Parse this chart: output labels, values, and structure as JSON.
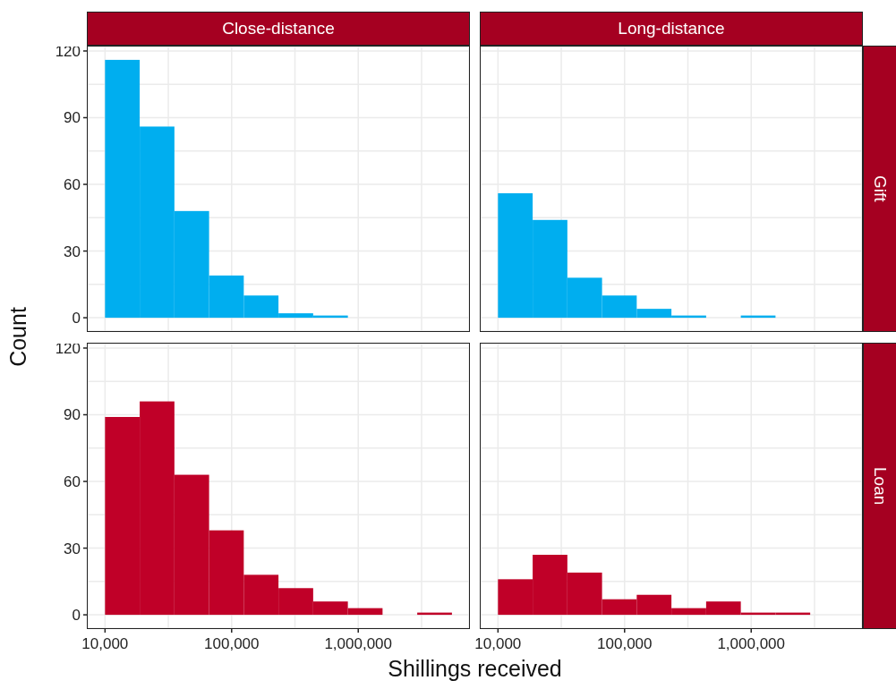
{
  "chart_data": [
    {
      "type": "histogram",
      "title": "Close-distance",
      "ylabel": "Count",
      "color": "#00aeef",
      "bins": [
        10000,
        18790,
        35320,
        66370,
        124700,
        234400,
        440600,
        827900
      ],
      "values": [
        116,
        86,
        48,
        19,
        10,
        2,
        1
      ],
      "log": "x",
      "xlim": [
        7300,
        7500000
      ],
      "ylim": [
        -6,
        122
      ],
      "xticks": [
        10000,
        {
          "value": 31620,
          "label": null
        },
        100000,
        {
          "value": 316200,
          "label": null
        },
        1000000,
        {
          "value": 3162000,
          "label": null
        }
      ],
      "yticks": [
        0,
        {
          "value": 15,
          "label": null
        },
        30,
        {
          "value": 45,
          "label": null
        },
        60,
        {
          "value": 75,
          "label": null
        },
        90,
        {
          "value": 105,
          "label": null
        },
        120
      ],
      "grid": true,
      "tick_labels": "y"
    },
    {
      "type": "histogram",
      "title": "Long-distance",
      "y2label": "Gift",
      "color": "#00aeef",
      "bins": [
        10000,
        18790,
        35320,
        66370,
        124700,
        234400,
        440600,
        827900,
        1556000
      ],
      "values": [
        56,
        44,
        18,
        10,
        4,
        1,
        0,
        1
      ],
      "log": "x",
      "xlim": [
        7300,
        7500000
      ],
      "ylim": [
        -6,
        122
      ],
      "xticks": [
        10000,
        {
          "value": 31620,
          "label": null
        },
        100000,
        {
          "value": 316200,
          "label": null
        },
        1000000,
        {
          "value": 3162000,
          "label": null
        }
      ],
      "yticks": [
        0,
        {
          "value": 15,
          "label": null
        },
        30,
        {
          "value": 45,
          "label": null
        },
        60,
        {
          "value": 75,
          "label": null
        },
        90,
        {
          "value": 105,
          "label": null
        },
        120
      ],
      "grid": true,
      "tick_labels": false
    },
    {
      "type": "histogram",
      "xlabel": "Shillings received",
      "color": "#c00028",
      "bins": [
        10000,
        18790,
        35320,
        66370,
        124700,
        234400,
        440600,
        827900,
        1556000,
        2924000,
        5495000
      ],
      "values": [
        89,
        96,
        63,
        38,
        18,
        12,
        6,
        3,
        0,
        1
      ],
      "log": "x",
      "xlim": [
        7300,
        7500000
      ],
      "ylim": [
        -6,
        122
      ],
      "xticks": [
        {
          "value": 10000,
          "label": "10,000"
        },
        {
          "value": 31620,
          "label": null
        },
        {
          "value": 100000,
          "label": "100,000"
        },
        {
          "value": 316200,
          "label": null
        },
        {
          "value": 1000000,
          "label": "1,000,000"
        },
        {
          "value": 3162000,
          "label": null
        }
      ],
      "yticks": [
        0,
        {
          "value": 15,
          "label": null
        },
        30,
        {
          "value": 45,
          "label": null
        },
        60,
        {
          "value": 75,
          "label": null
        },
        90,
        {
          "value": 105,
          "label": null
        },
        120
      ],
      "grid": true
    },
    {
      "type": "histogram",
      "y2label": "Loan",
      "color": "#c00028",
      "bins": [
        10000,
        18790,
        35320,
        66370,
        124700,
        234400,
        440600,
        827900,
        1556000,
        2924000
      ],
      "values": [
        16,
        27,
        19,
        7,
        9,
        3,
        6,
        1,
        1
      ],
      "log": "x",
      "xlim": [
        7300,
        7500000
      ],
      "ylim": [
        -6,
        122
      ],
      "xticks": [
        {
          "value": 10000,
          "label": "10,000"
        },
        {
          "value": 31620,
          "label": null
        },
        {
          "value": 100000,
          "label": "100,000"
        },
        {
          "value": 316200,
          "label": null
        },
        {
          "value": 1000000,
          "label": "1,000,000"
        },
        {
          "value": 3162000,
          "label": null
        }
      ],
      "yticks": [
        0,
        {
          "value": 15,
          "label": null
        },
        30,
        {
          "value": 45,
          "label": null
        },
        60,
        {
          "value": 75,
          "label": null
        },
        90,
        {
          "value": 105,
          "label": null
        },
        120
      ],
      "grid": true,
      "tick_labels": "x"
    }
  ]
}
